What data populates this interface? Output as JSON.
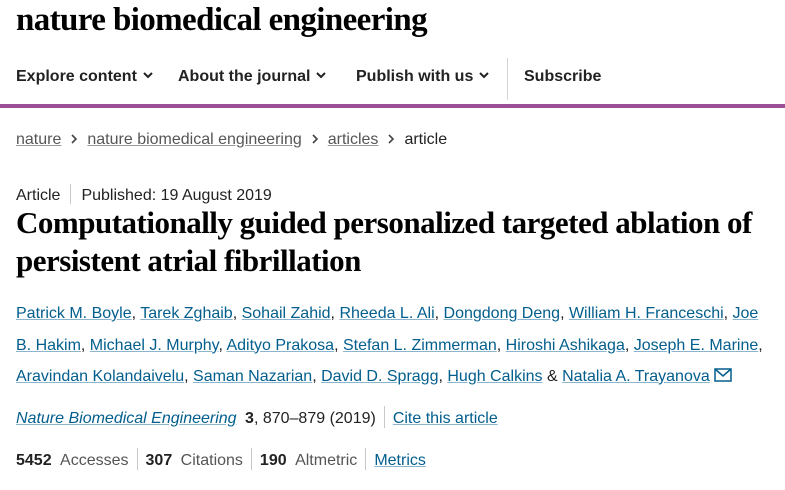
{
  "site": {
    "logo": "nature biomedical engineering"
  },
  "nav": {
    "items": [
      {
        "label": "Explore content",
        "icon": "chevron-down-icon"
      },
      {
        "label": "About the journal",
        "icon": "chevron-down-icon"
      },
      {
        "label": "Publish with us",
        "icon": "chevron-down-icon"
      }
    ],
    "subscribe": "Subscribe",
    "accent": "#9b4f96"
  },
  "breadcrumb": {
    "items": [
      "nature",
      "nature biomedical engineering",
      "articles"
    ],
    "current": "article"
  },
  "article": {
    "type": "Article",
    "published": "Published: 19 August 2019",
    "title": "Computationally guided personalized targeted ablation of persistent atrial fibrillation",
    "authors": [
      "Patrick M. Boyle",
      "Tarek Zghaib",
      "Sohail Zahid",
      "Rheeda L. Ali",
      "Dongdong Deng",
      "William H. Franceschi",
      "Joe B. Hakim",
      "Michael J. Murphy",
      "Adityo Prakosa",
      "Stefan L. Zimmerman",
      "Hiroshi Ashikaga",
      "Joseph E. Marine",
      "Aravindan Kolandaivelu",
      "Saman Nazarian",
      "David D. Spragg",
      "Hugh Calkins",
      "Natalia A. Trayanova"
    ],
    "author_separator": ",",
    "last_author_connector": "&",
    "journal": "Nature Biomedical Engineering",
    "volume": "3",
    "pages_year": ", 870–879 (2019)",
    "cite_link": "Cite this article",
    "link_color": "#025e8d"
  },
  "metrics": {
    "accesses_value": "5452",
    "accesses_label": "Accesses",
    "citations_value": "307",
    "citations_label": "Citations",
    "altmetric_value": "190",
    "altmetric_label": "Altmetric",
    "metrics_link": "Metrics"
  }
}
